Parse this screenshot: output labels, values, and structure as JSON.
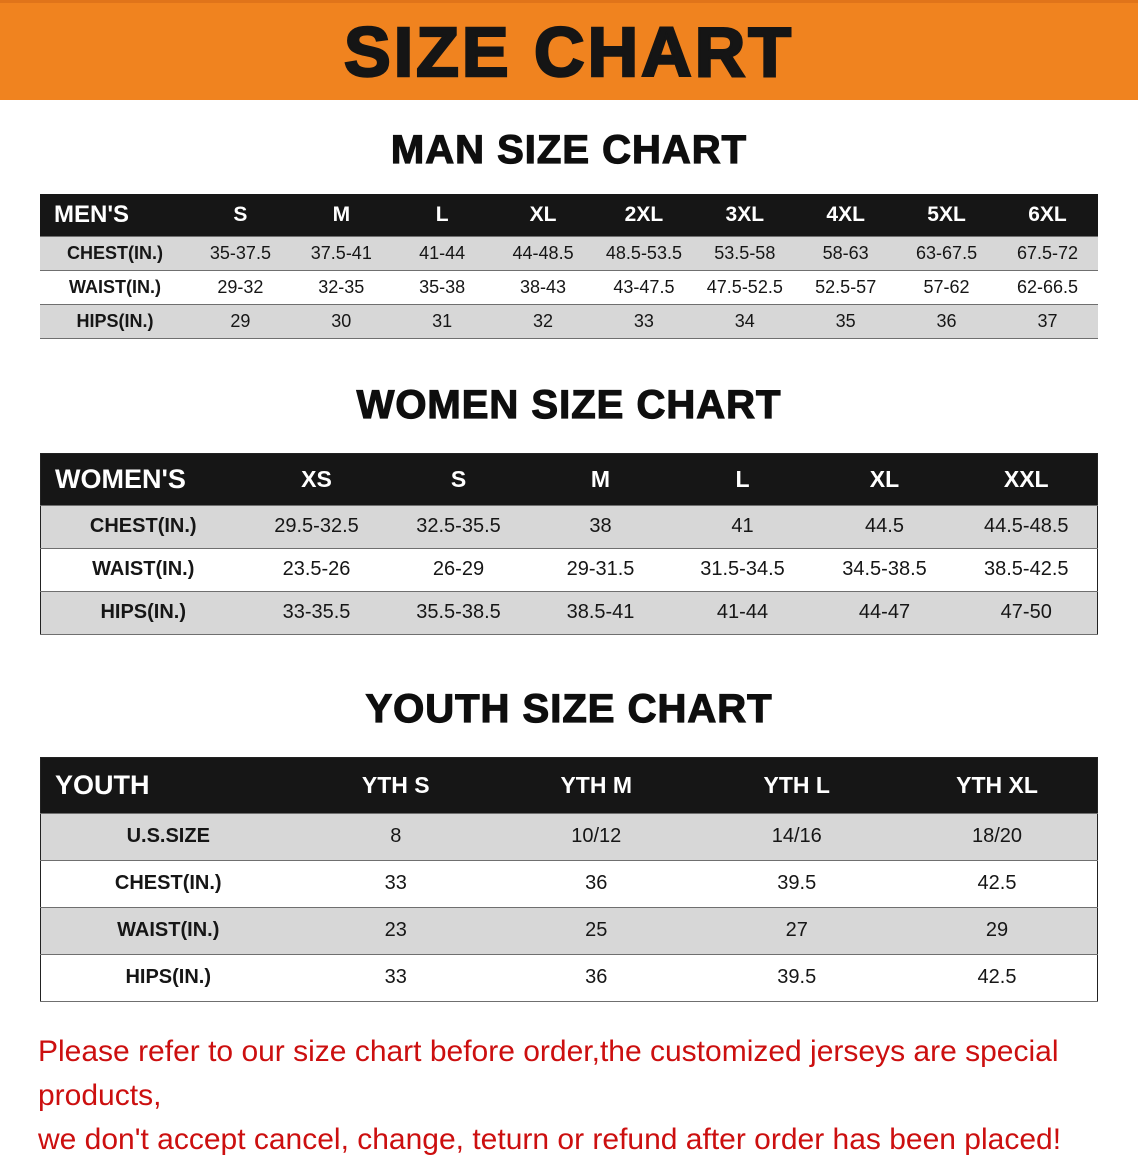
{
  "banner": {
    "title": "SIZE CHART",
    "bg_color": "#f0831f",
    "text_color": "#151515"
  },
  "sections": {
    "men": {
      "heading": "MAN SIZE CHART",
      "table": {
        "header": [
          "MEN'S",
          "S",
          "M",
          "L",
          "XL",
          "2XL",
          "3XL",
          "4XL",
          "5XL",
          "6XL"
        ],
        "rows": [
          [
            "CHEST(IN.)",
            "35-37.5",
            "37.5-41",
            "41-44",
            "44-48.5",
            "48.5-53.5",
            "53.5-58",
            "58-63",
            "63-67.5",
            "67.5-72"
          ],
          [
            "WAIST(IN.)",
            "29-32",
            "32-35",
            "35-38",
            "38-43",
            "43-47.5",
            "47.5-52.5",
            "52.5-57",
            "57-62",
            "62-66.5"
          ],
          [
            "HIPS(IN.)",
            "29",
            "30",
            "31",
            "32",
            "33",
            "34",
            "35",
            "36",
            "37"
          ]
        ]
      }
    },
    "women": {
      "heading": "WOMEN SIZE CHART",
      "table": {
        "header": [
          "WOMEN'S",
          "XS",
          "S",
          "M",
          "L",
          "XL",
          "XXL"
        ],
        "rows": [
          [
            "CHEST(IN.)",
            "29.5-32.5",
            "32.5-35.5",
            "38",
            "41",
            "44.5",
            "44.5-48.5"
          ],
          [
            "WAIST(IN.)",
            "23.5-26",
            "26-29",
            "29-31.5",
            "31.5-34.5",
            "34.5-38.5",
            "38.5-42.5"
          ],
          [
            "HIPS(IN.)",
            "33-35.5",
            "35.5-38.5",
            "38.5-41",
            "41-44",
            "44-47",
            "47-50"
          ]
        ]
      }
    },
    "youth": {
      "heading": "YOUTH SIZE CHART",
      "table": {
        "header": [
          "YOUTH",
          "YTH S",
          "YTH M",
          "YTH L",
          "YTH XL"
        ],
        "rows": [
          [
            "U.S.SIZE",
            "8",
            "10/12",
            "14/16",
            "18/20"
          ],
          [
            "CHEST(IN.)",
            "33",
            "36",
            "39.5",
            "42.5"
          ],
          [
            "WAIST(IN.)",
            "23",
            "25",
            "27",
            "29"
          ],
          [
            "HIPS(IN.)",
            "33",
            "36",
            "39.5",
            "42.5"
          ]
        ]
      }
    }
  },
  "disclaimer": {
    "color": "#cc0f0f",
    "line1": "Please refer to our size chart before order,the customized jerseys are special products,",
    "line2": "we don't accept cancel, change, teturn or refund after order has been placed!"
  }
}
